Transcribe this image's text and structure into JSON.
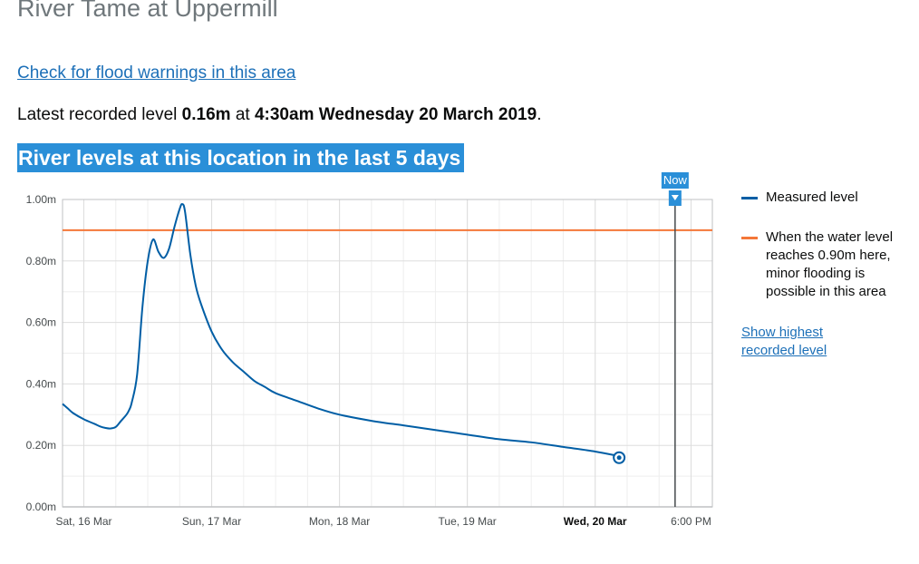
{
  "page": {
    "title": "River Tame at Uppermill",
    "warning_link": "Check for flood warnings in this area",
    "latest_prefix": "Latest recorded level",
    "latest_value": "0.16m",
    "latest_at": "at",
    "latest_time": "4:30am Wednesday 20 March 2019",
    "latest_suffix": ".",
    "section_heading": "River levels at this location in the last 5 days"
  },
  "legend": {
    "measured_label": "Measured level",
    "threshold_label": "When the water level reaches 0.90m here, minor flooding is possible in this area",
    "show_highest_link": "Show highest recorded level"
  },
  "colors": {
    "measured": "#005ea5",
    "threshold": "#f47738",
    "now_marker": "#2a8fd8",
    "grid": "#e3e3e3",
    "heading_bg": "#2a8fd8"
  },
  "chart_data": {
    "type": "line",
    "title": "",
    "xlabel": "",
    "ylabel": "",
    "ylim": [
      0,
      1
    ],
    "yticks": [
      "0.00m",
      "0.20m",
      "0.40m",
      "0.60m",
      "0.80m",
      "1.00m"
    ],
    "yticks_values": [
      0,
      0.2,
      0.4,
      0.6,
      0.8,
      1.0
    ],
    "xlim": [
      "2019-03-15 20:00",
      "2019-03-20 22:00"
    ],
    "xticks": [
      {
        "label": "Sat, 16 Mar",
        "x": "2019-03-16 00:00",
        "bold": false
      },
      {
        "label": "Sun, 17 Mar",
        "x": "2019-03-17 00:00",
        "bold": false
      },
      {
        "label": "Mon, 18 Mar",
        "x": "2019-03-18 00:00",
        "bold": false
      },
      {
        "label": "Tue, 19 Mar",
        "x": "2019-03-19 00:00",
        "bold": false
      },
      {
        "label": "Wed, 20 Mar",
        "x": "2019-03-20 00:00",
        "bold": true
      },
      {
        "label": "6:00 PM",
        "x": "2019-03-20 18:00",
        "bold": false
      }
    ],
    "threshold": {
      "value": 0.9,
      "label": "When the water level reaches 0.90m here, minor flooding is possible in this area"
    },
    "now": {
      "label": "Now",
      "x": "2019-03-20 15:00"
    },
    "latest_point": {
      "x": "2019-03-20 04:30",
      "y": 0.16
    },
    "grid": true,
    "legend_position": "right",
    "series": [
      {
        "name": "Measured level",
        "x": [
          "2019-03-15 20:00",
          "2019-03-15 21:00",
          "2019-03-15 22:00",
          "2019-03-16 00:00",
          "2019-03-16 02:00",
          "2019-03-16 03:00",
          "2019-03-16 04:00",
          "2019-03-16 05:00",
          "2019-03-16 06:00",
          "2019-03-16 07:00",
          "2019-03-16 08:00",
          "2019-03-16 08:30",
          "2019-03-16 09:00",
          "2019-03-16 10:00",
          "2019-03-16 11:00",
          "2019-03-16 12:00",
          "2019-03-16 13:00",
          "2019-03-16 14:00",
          "2019-03-16 15:00",
          "2019-03-16 16:00",
          "2019-03-16 17:00",
          "2019-03-16 18:00",
          "2019-03-16 18:30",
          "2019-03-16 19:00",
          "2019-03-16 20:00",
          "2019-03-16 21:00",
          "2019-03-16 22:00",
          "2019-03-17 00:00",
          "2019-03-17 02:00",
          "2019-03-17 04:00",
          "2019-03-17 06:00",
          "2019-03-17 08:00",
          "2019-03-17 10:00",
          "2019-03-17 12:00",
          "2019-03-17 16:00",
          "2019-03-17 20:00",
          "2019-03-18 00:00",
          "2019-03-18 06:00",
          "2019-03-18 12:00",
          "2019-03-18 18:00",
          "2019-03-18 22:00",
          "2019-03-19 00:00",
          "2019-03-19 06:00",
          "2019-03-19 12:00",
          "2019-03-19 18:00",
          "2019-03-20 00:00",
          "2019-03-20 04:30"
        ],
        "y": [
          0.335,
          0.32,
          0.305,
          0.285,
          0.27,
          0.262,
          0.257,
          0.255,
          0.26,
          0.28,
          0.3,
          0.315,
          0.34,
          0.43,
          0.65,
          0.8,
          0.87,
          0.83,
          0.81,
          0.84,
          0.91,
          0.97,
          0.985,
          0.96,
          0.82,
          0.72,
          0.66,
          0.57,
          0.51,
          0.47,
          0.44,
          0.41,
          0.39,
          0.37,
          0.345,
          0.32,
          0.3,
          0.28,
          0.265,
          0.25,
          0.24,
          0.235,
          0.22,
          0.21,
          0.195,
          0.18,
          0.165
        ]
      }
    ]
  }
}
